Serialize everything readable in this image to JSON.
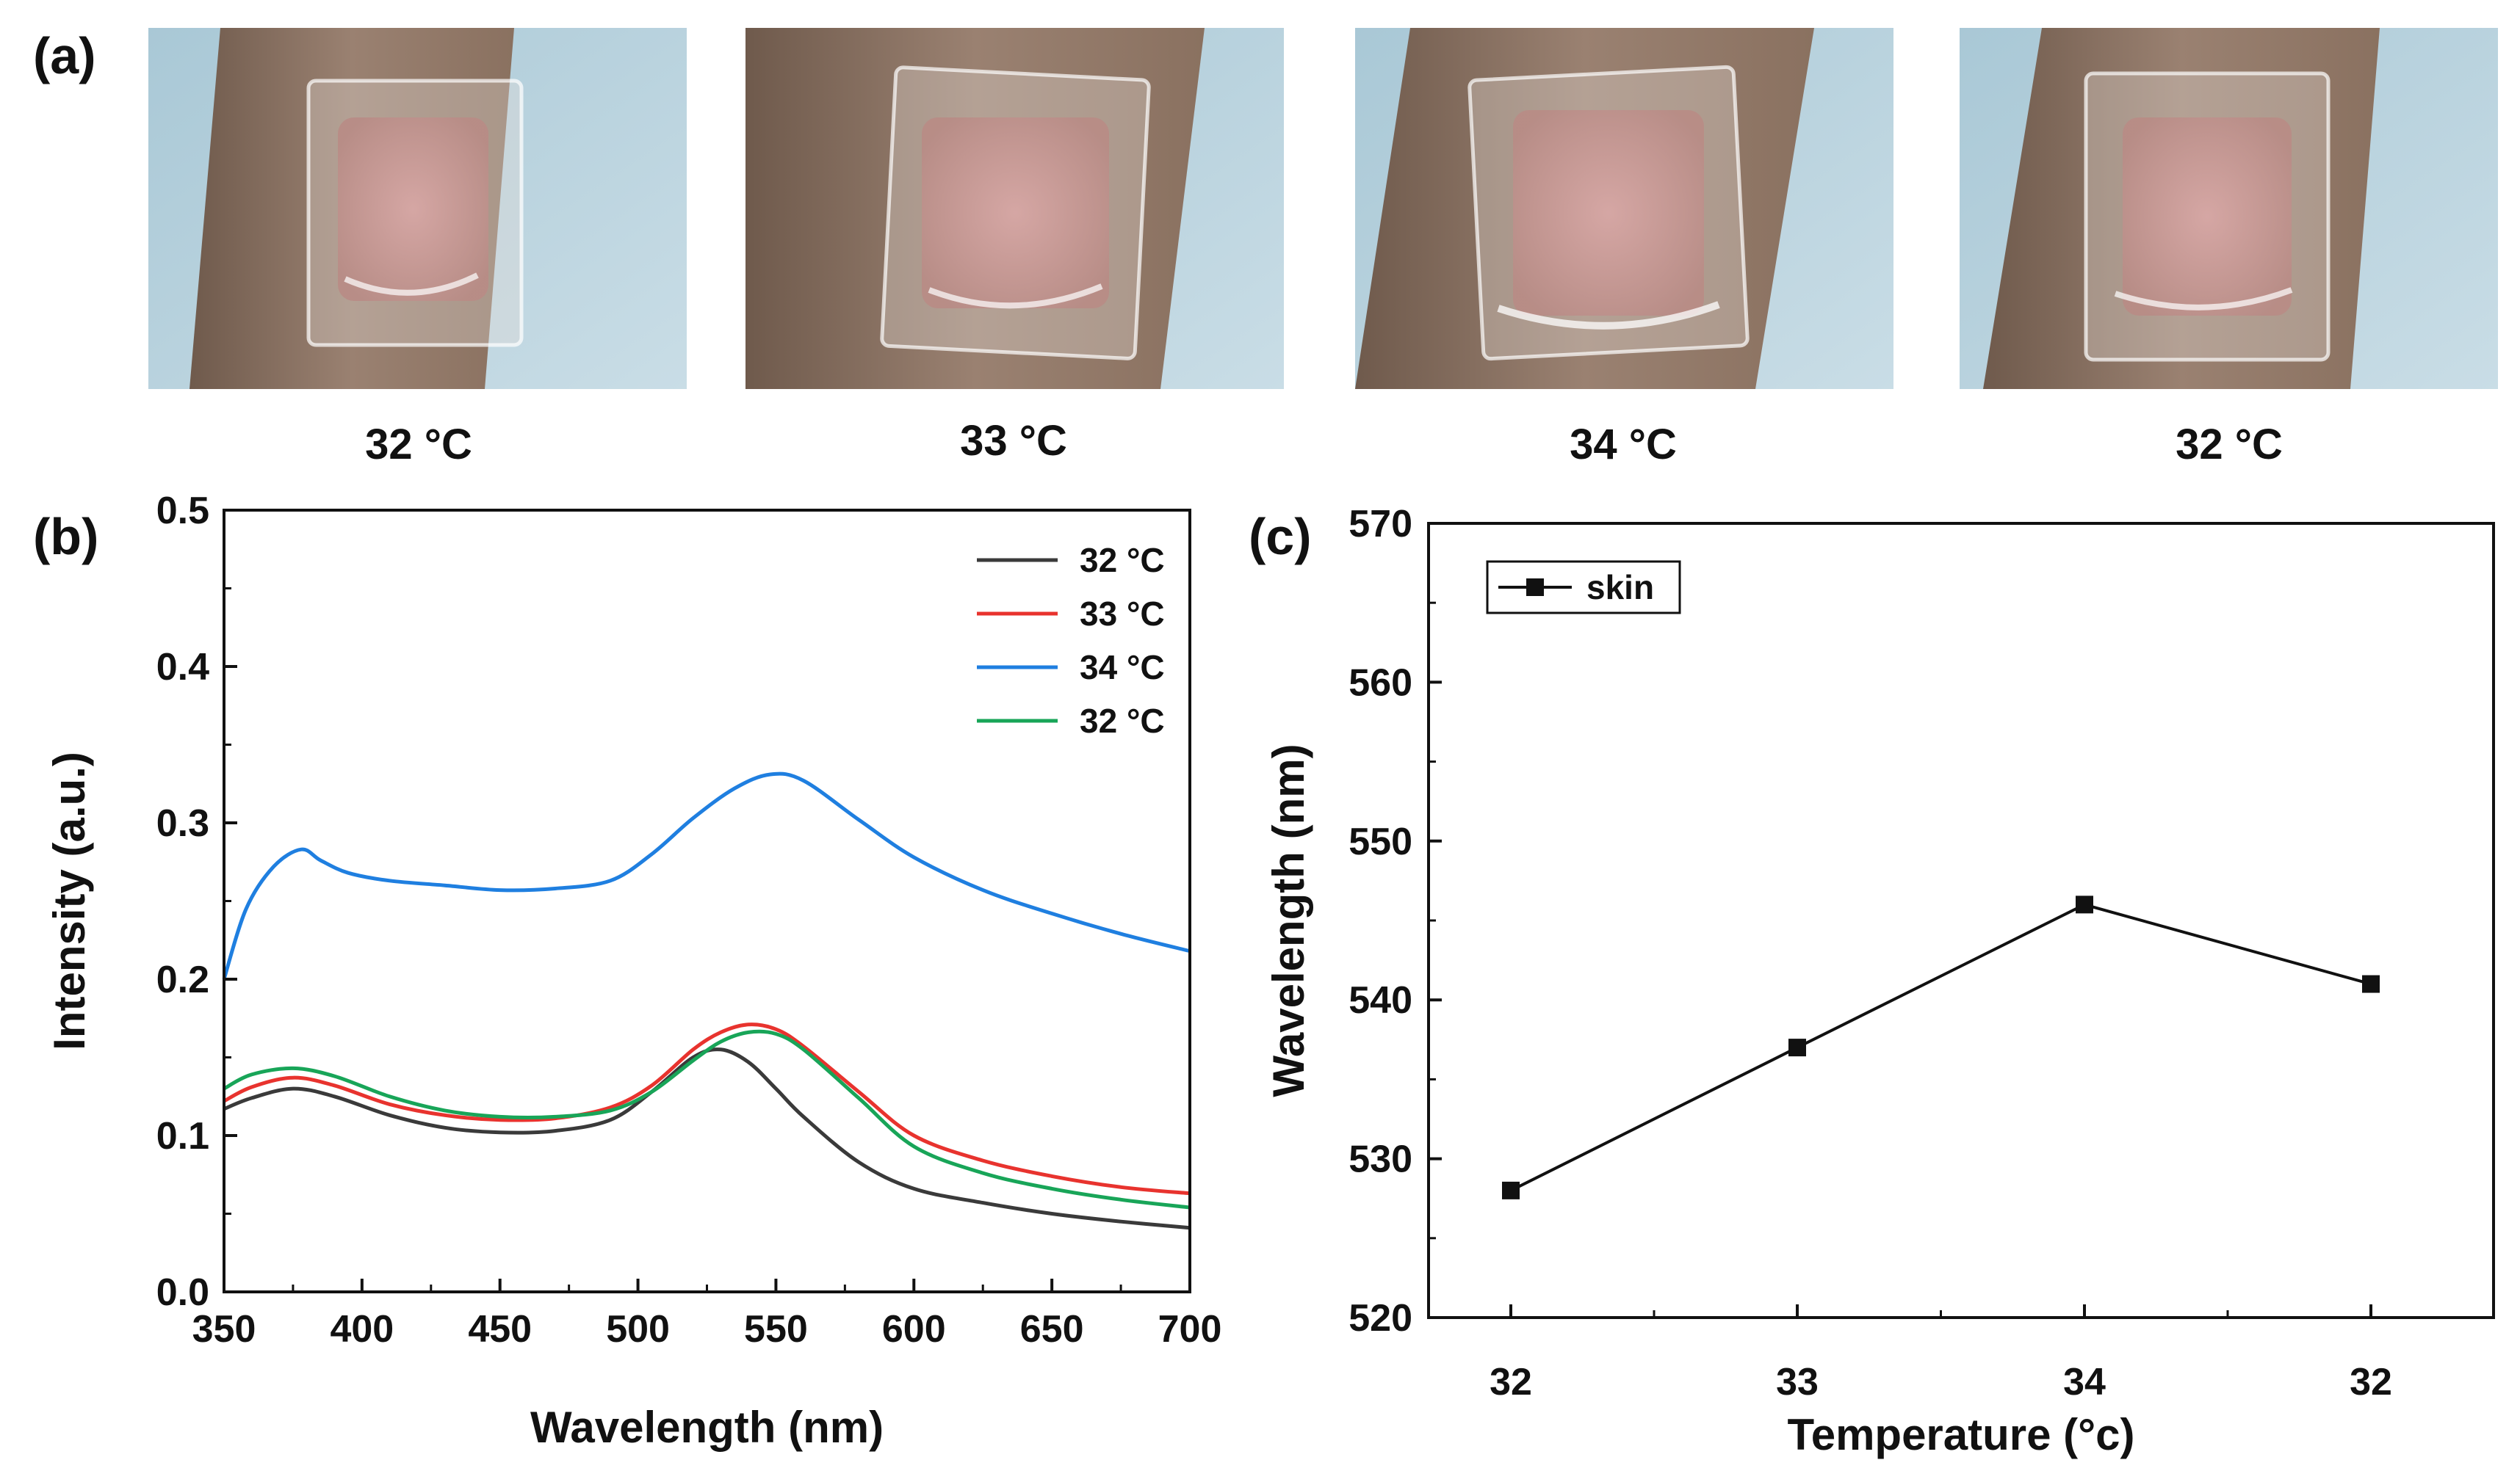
{
  "panel_labels": [
    "(a)",
    "(b)",
    "(c)"
  ],
  "photos": [
    {
      "caption": "32 °C"
    },
    {
      "caption": "33 °C"
    },
    {
      "caption": "34 °C"
    },
    {
      "caption": "32 °C"
    }
  ],
  "colors": {
    "series_32a": "#3a3a3a",
    "series_33": "#e8332e",
    "series_34": "#1f7fe0",
    "series_32b": "#18a558",
    "skin_line": "#111111"
  },
  "chart_data": [
    {
      "type": "line",
      "panel": "(b)",
      "title": "",
      "xlabel": "Wavelength (nm)",
      "ylabel": "Intensity (a.u.)",
      "xlim": [
        350,
        700
      ],
      "ylim": [
        0.0,
        0.5
      ],
      "xticks": [
        "350",
        "400",
        "450",
        "500",
        "550",
        "600",
        "650",
        "700"
      ],
      "yticks": [
        "0.0",
        "0.1",
        "0.2",
        "0.3",
        "0.4",
        "0.5"
      ],
      "legend": "top-right",
      "series": [
        {
          "name": "32 °C",
          "color": "#3a3a3a",
          "x": [
            350,
            360,
            375,
            390,
            410,
            430,
            450,
            470,
            490,
            505,
            520,
            530,
            540,
            550,
            560,
            580,
            600,
            625,
            650,
            675,
            700
          ],
          "y": [
            0.117,
            0.124,
            0.13,
            0.125,
            0.113,
            0.105,
            0.102,
            0.103,
            0.11,
            0.128,
            0.15,
            0.155,
            0.147,
            0.13,
            0.112,
            0.083,
            0.066,
            0.057,
            0.05,
            0.045,
            0.041
          ]
        },
        {
          "name": "33 °C",
          "color": "#e8332e",
          "x": [
            350,
            360,
            375,
            390,
            410,
            430,
            450,
            470,
            490,
            505,
            520,
            530,
            540,
            550,
            560,
            580,
            600,
            625,
            650,
            675,
            700
          ],
          "y": [
            0.122,
            0.131,
            0.137,
            0.132,
            0.12,
            0.113,
            0.11,
            0.111,
            0.118,
            0.132,
            0.155,
            0.166,
            0.171,
            0.168,
            0.157,
            0.128,
            0.1,
            0.084,
            0.074,
            0.067,
            0.063
          ]
        },
        {
          "name": "34 °C",
          "color": "#1f7fe0",
          "x": [
            350,
            358,
            368,
            378,
            385,
            395,
            410,
            430,
            450,
            470,
            490,
            505,
            520,
            535,
            548,
            560,
            580,
            600,
            625,
            650,
            675,
            700
          ],
          "y": [
            0.2,
            0.245,
            0.272,
            0.283,
            0.276,
            0.268,
            0.263,
            0.26,
            0.257,
            0.258,
            0.263,
            0.28,
            0.303,
            0.322,
            0.331,
            0.327,
            0.302,
            0.278,
            0.257,
            0.242,
            0.229,
            0.218
          ]
        },
        {
          "name": "32 °C",
          "color": "#18a558",
          "x": [
            350,
            360,
            375,
            390,
            410,
            430,
            450,
            470,
            490,
            505,
            520,
            530,
            540,
            550,
            560,
            580,
            600,
            625,
            650,
            675,
            700
          ],
          "y": [
            0.13,
            0.139,
            0.143,
            0.138,
            0.125,
            0.116,
            0.112,
            0.112,
            0.116,
            0.128,
            0.148,
            0.16,
            0.166,
            0.165,
            0.155,
            0.124,
            0.093,
            0.076,
            0.066,
            0.059,
            0.054
          ]
        }
      ]
    },
    {
      "type": "line",
      "panel": "(c)",
      "title": "",
      "xlabel": "Temperature (°c)",
      "ylabel": "Wavelength (nm)",
      "categories": [
        "32",
        "33",
        "34",
        "32"
      ],
      "ylim": [
        520,
        570
      ],
      "yticks": [
        "520",
        "530",
        "540",
        "550",
        "560",
        "570"
      ],
      "legend": "top-left",
      "series": [
        {
          "name": "skin",
          "color": "#111111",
          "marker": "square",
          "values": [
            528,
            537,
            546,
            541
          ]
        }
      ]
    }
  ]
}
